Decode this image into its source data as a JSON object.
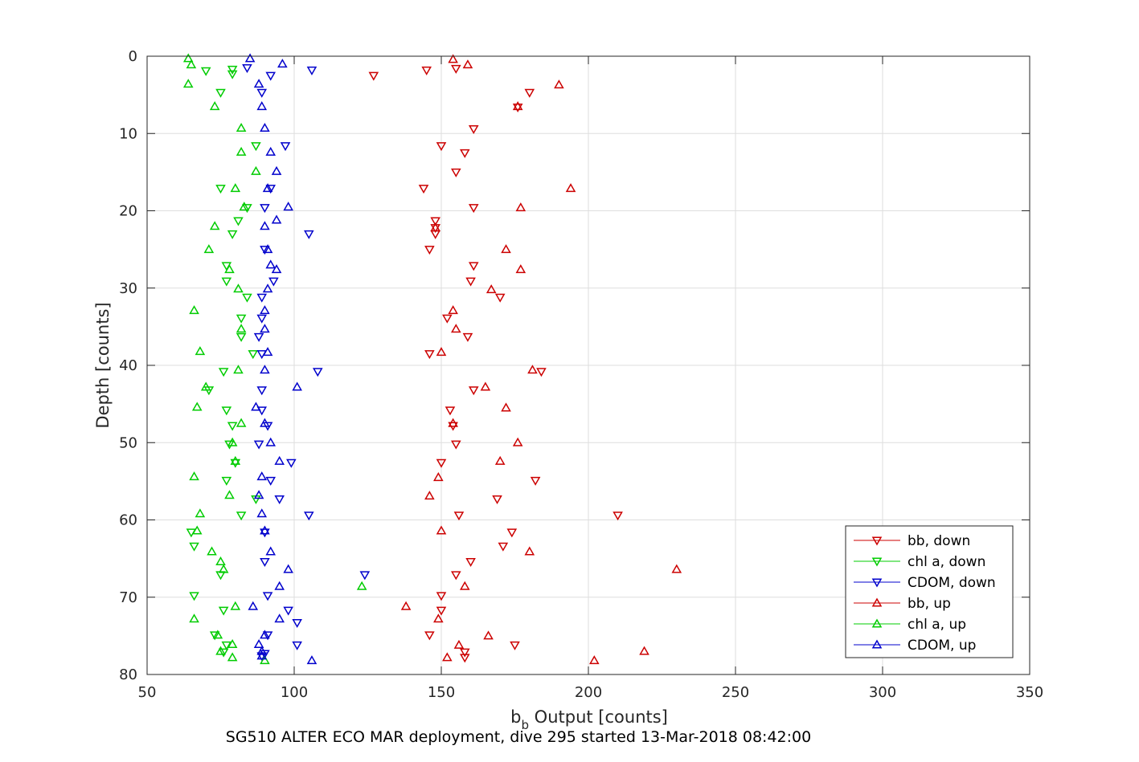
{
  "chart_data": {
    "type": "scatter",
    "xlabel_main": "b",
    "xlabel_sub": "b",
    "xlabel_rest": " Output [counts]",
    "ylabel": "Depth [counts]",
    "caption": "SG510 ALTER ECO MAR deployment, dive 295 started 13-Mar-2018 08:42:00",
    "xlim": [
      50,
      350
    ],
    "ylim": [
      0,
      80
    ],
    "y_reversed": true,
    "grid": true,
    "legend_position": "bottom-right",
    "xticks": [
      50,
      100,
      150,
      200,
      250,
      300,
      350
    ],
    "yticks": [
      0,
      10,
      20,
      30,
      40,
      50,
      60,
      70,
      80
    ],
    "series": [
      {
        "name": "bb, down",
        "color": "#cc0000",
        "marker": "triangle-down",
        "points": [
          [
            155,
            1.6
          ],
          [
            145,
            1.8
          ],
          [
            127,
            2.5
          ],
          [
            180,
            4.7
          ],
          [
            176,
            6.6
          ],
          [
            161,
            9.4
          ],
          [
            150,
            11.6
          ],
          [
            158,
            12.5
          ],
          [
            155,
            15.0
          ],
          [
            144,
            17.1
          ],
          [
            161,
            19.6
          ],
          [
            148,
            21.3
          ],
          [
            148,
            22.2
          ],
          [
            148,
            23.0
          ],
          [
            146,
            25.0
          ],
          [
            161,
            27.1
          ],
          [
            160,
            29.1
          ],
          [
            170,
            31.2
          ],
          [
            152,
            33.9
          ],
          [
            159,
            36.3
          ],
          [
            146,
            38.5
          ],
          [
            184,
            40.8
          ],
          [
            161,
            43.2
          ],
          [
            153,
            45.8
          ],
          [
            154,
            47.8
          ],
          [
            155,
            50.2
          ],
          [
            150,
            52.6
          ],
          [
            182,
            54.9
          ],
          [
            169,
            57.3
          ],
          [
            156,
            59.4
          ],
          [
            210,
            59.4
          ],
          [
            174,
            61.6
          ],
          [
            171,
            63.4
          ],
          [
            160,
            65.4
          ],
          [
            155,
            67.1
          ],
          [
            150,
            69.8
          ],
          [
            150,
            71.7
          ],
          [
            146,
            74.9
          ],
          [
            175,
            76.2
          ],
          [
            158,
            77.1
          ],
          [
            158,
            77.8
          ]
        ]
      },
      {
        "name": "chl a, down",
        "color": "#00cc00",
        "marker": "triangle-down",
        "points": [
          [
            70,
            1.9
          ],
          [
            79,
            1.7
          ],
          [
            79,
            2.3
          ],
          [
            75,
            4.7
          ],
          [
            87,
            11.6
          ],
          [
            75,
            17.1
          ],
          [
            84,
            19.6
          ],
          [
            81,
            21.3
          ],
          [
            79,
            23.0
          ],
          [
            77,
            27.1
          ],
          [
            77,
            29.1
          ],
          [
            84,
            31.2
          ],
          [
            82,
            33.9
          ],
          [
            82,
            36.3
          ],
          [
            86,
            38.5
          ],
          [
            76,
            40.8
          ],
          [
            71,
            43.2
          ],
          [
            77,
            45.8
          ],
          [
            79,
            47.8
          ],
          [
            78,
            50.2
          ],
          [
            80,
            52.6
          ],
          [
            77,
            54.9
          ],
          [
            87,
            57.3
          ],
          [
            82,
            59.4
          ],
          [
            65,
            61.6
          ],
          [
            66,
            63.4
          ],
          [
            75,
            67.1
          ],
          [
            66,
            69.8
          ],
          [
            76,
            71.7
          ],
          [
            73,
            74.9
          ],
          [
            77,
            76.2
          ],
          [
            76,
            77.1
          ]
        ]
      },
      {
        "name": "CDOM, down",
        "color": "#0000cc",
        "marker": "triangle-down",
        "points": [
          [
            84,
            1.5
          ],
          [
            106,
            1.8
          ],
          [
            92,
            2.5
          ],
          [
            89,
            4.7
          ],
          [
            97,
            11.6
          ],
          [
            92,
            17.1
          ],
          [
            90,
            19.6
          ],
          [
            105,
            23.0
          ],
          [
            90,
            25.0
          ],
          [
            93,
            29.1
          ],
          [
            89,
            31.2
          ],
          [
            89,
            33.9
          ],
          [
            88,
            36.3
          ],
          [
            89,
            38.5
          ],
          [
            108,
            40.8
          ],
          [
            89,
            43.2
          ],
          [
            89,
            45.8
          ],
          [
            91,
            47.8
          ],
          [
            88,
            50.2
          ],
          [
            99,
            52.6
          ],
          [
            92,
            54.9
          ],
          [
            95,
            57.3
          ],
          [
            105,
            59.4
          ],
          [
            90,
            61.6
          ],
          [
            90,
            65.4
          ],
          [
            124,
            67.1
          ],
          [
            91,
            69.8
          ],
          [
            98,
            71.7
          ],
          [
            101,
            73.3
          ],
          [
            91,
            74.9
          ],
          [
            101,
            76.2
          ],
          [
            90,
            77.3
          ],
          [
            89,
            77.6
          ]
        ]
      },
      {
        "name": "bb, up",
        "color": "#cc0000",
        "marker": "triangle-up",
        "points": [
          [
            154,
            0.4
          ],
          [
            159,
            1.1
          ],
          [
            190,
            3.7
          ],
          [
            176,
            6.5
          ],
          [
            194,
            17.1
          ],
          [
            177,
            19.6
          ],
          [
            148,
            22.2
          ],
          [
            172,
            25.0
          ],
          [
            177,
            27.6
          ],
          [
            167,
            30.2
          ],
          [
            154,
            32.9
          ],
          [
            155,
            35.3
          ],
          [
            150,
            38.3
          ],
          [
            181,
            40.6
          ],
          [
            165,
            42.8
          ],
          [
            172,
            45.5
          ],
          [
            154,
            47.5
          ],
          [
            176,
            50.0
          ],
          [
            170,
            52.4
          ],
          [
            149,
            54.5
          ],
          [
            146,
            56.9
          ],
          [
            150,
            61.4
          ],
          [
            180,
            64.1
          ],
          [
            230,
            66.4
          ],
          [
            158,
            68.6
          ],
          [
            138,
            71.2
          ],
          [
            149,
            72.8
          ],
          [
            166,
            75.0
          ],
          [
            156,
            76.2
          ],
          [
            219,
            77.0
          ],
          [
            152,
            77.8
          ],
          [
            202,
            78.2
          ]
        ]
      },
      {
        "name": "chl a, up",
        "color": "#00cc00",
        "marker": "triangle-up",
        "points": [
          [
            64,
            0.3
          ],
          [
            65,
            1.1
          ],
          [
            64,
            3.6
          ],
          [
            73,
            6.5
          ],
          [
            82,
            9.3
          ],
          [
            82,
            12.4
          ],
          [
            87,
            14.9
          ],
          [
            80,
            17.1
          ],
          [
            83,
            19.5
          ],
          [
            73,
            22.0
          ],
          [
            71,
            25.0
          ],
          [
            78,
            27.6
          ],
          [
            81,
            30.1
          ],
          [
            66,
            32.9
          ],
          [
            82,
            35.3
          ],
          [
            68,
            38.2
          ],
          [
            81,
            40.6
          ],
          [
            70,
            42.8
          ],
          [
            67,
            45.4
          ],
          [
            82,
            47.5
          ],
          [
            79,
            50.0
          ],
          [
            80,
            52.4
          ],
          [
            66,
            54.4
          ],
          [
            78,
            56.8
          ],
          [
            68,
            59.2
          ],
          [
            67,
            61.4
          ],
          [
            72,
            64.1
          ],
          [
            75,
            65.4
          ],
          [
            76,
            66.4
          ],
          [
            123,
            68.6
          ],
          [
            80,
            71.2
          ],
          [
            66,
            72.8
          ],
          [
            74,
            74.9
          ],
          [
            79,
            76.1
          ],
          [
            75,
            77.0
          ],
          [
            79,
            77.8
          ],
          [
            90,
            78.2
          ]
        ]
      },
      {
        "name": "CDOM, up",
        "color": "#0000cc",
        "marker": "triangle-up",
        "points": [
          [
            85,
            0.3
          ],
          [
            96,
            1.0
          ],
          [
            88,
            3.6
          ],
          [
            89,
            6.5
          ],
          [
            90,
            9.3
          ],
          [
            92,
            12.4
          ],
          [
            94,
            14.9
          ],
          [
            91,
            17.1
          ],
          [
            98,
            19.5
          ],
          [
            94,
            21.2
          ],
          [
            90,
            22.0
          ],
          [
            91,
            25.0
          ],
          [
            92,
            27.0
          ],
          [
            94,
            27.6
          ],
          [
            91,
            30.1
          ],
          [
            90,
            32.9
          ],
          [
            90,
            35.3
          ],
          [
            91,
            38.3
          ],
          [
            90,
            40.6
          ],
          [
            101,
            42.8
          ],
          [
            87,
            45.4
          ],
          [
            90,
            47.5
          ],
          [
            92,
            50.0
          ],
          [
            95,
            52.4
          ],
          [
            89,
            54.4
          ],
          [
            88,
            56.8
          ],
          [
            89,
            59.2
          ],
          [
            90,
            61.4
          ],
          [
            92,
            64.1
          ],
          [
            98,
            66.4
          ],
          [
            95,
            68.6
          ],
          [
            86,
            71.2
          ],
          [
            95,
            72.8
          ],
          [
            90,
            74.9
          ],
          [
            88,
            76.1
          ],
          [
            89,
            77.0
          ],
          [
            106,
            78.2
          ],
          [
            89,
            77.6
          ]
        ]
      }
    ]
  }
}
